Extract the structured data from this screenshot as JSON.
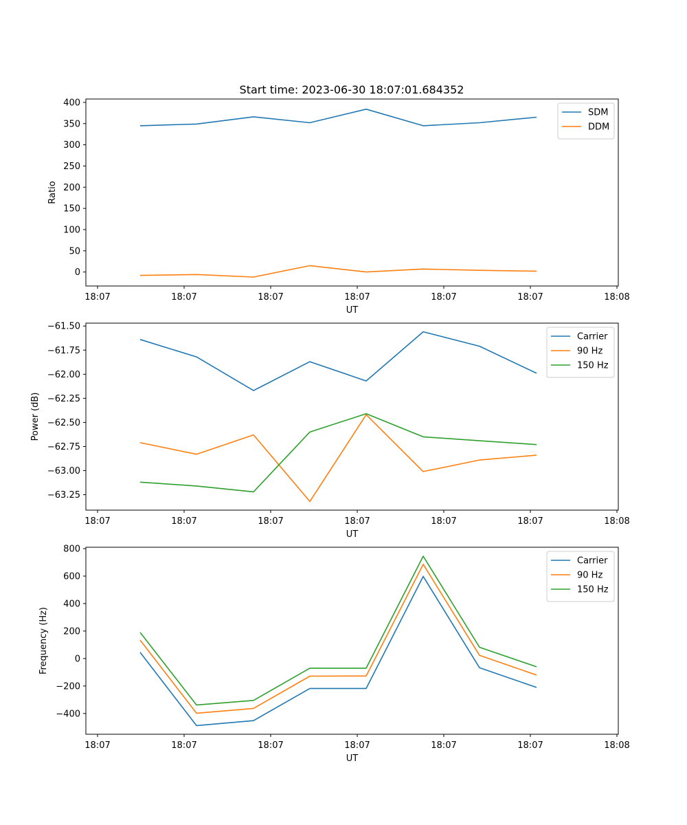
{
  "figure": {
    "title": "Start time: 2023-06-30 18:07:01.684352"
  },
  "chart_data": [
    {
      "type": "line",
      "title": "Start time: 2023-06-30 18:07:01.684352",
      "xlabel": "UT",
      "ylabel": "Ratio",
      "x_ticks": [
        "18:07",
        "18:07",
        "18:07",
        "18:07",
        "18:07",
        "18:07",
        "18:08"
      ],
      "ylim": [
        -33,
        408
      ],
      "y_ticks": [
        0,
        50,
        100,
        150,
        200,
        250,
        300,
        350,
        400
      ],
      "legend": "top-right",
      "grid": false,
      "x": [
        1,
        2,
        3,
        4,
        5,
        6,
        7,
        8
      ],
      "series": [
        {
          "name": "SDM",
          "color": "#1f77b4",
          "values": [
            345,
            349,
            366,
            352,
            384,
            345,
            352,
            365
          ]
        },
        {
          "name": "DDM",
          "color": "#ff7f0e",
          "values": [
            -8,
            -6,
            -12,
            15,
            0,
            7,
            4,
            2
          ]
        }
      ]
    },
    {
      "type": "line",
      "title": "",
      "xlabel": "UT",
      "ylabel": "Power (dB)",
      "x_ticks": [
        "18:07",
        "18:07",
        "18:07",
        "18:07",
        "18:07",
        "18:07",
        "18:08"
      ],
      "ylim": [
        -63.41,
        -61.47
      ],
      "y_ticks": [
        "-61.50",
        "-61.75",
        "-62.00",
        "-62.25",
        "-62.50",
        "-62.75",
        "-63.00",
        "-63.25"
      ],
      "legend": "top-right",
      "grid": false,
      "x": [
        1,
        2,
        3,
        4,
        5,
        6,
        7,
        8
      ],
      "series": [
        {
          "name": "Carrier",
          "color": "#1f77b4",
          "values": [
            -61.64,
            -61.82,
            -62.17,
            -61.87,
            -62.07,
            -61.56,
            -61.71,
            -61.99
          ]
        },
        {
          "name": "90 Hz",
          "color": "#ff7f0e",
          "values": [
            -62.71,
            -62.83,
            -62.63,
            -63.32,
            -62.42,
            -63.01,
            -62.89,
            -62.84
          ]
        },
        {
          "name": "150 Hz",
          "color": "#2ca02c",
          "values": [
            -63.12,
            -63.16,
            -63.22,
            -62.6,
            -62.41,
            -62.65,
            -62.69,
            -62.73
          ]
        }
      ]
    },
    {
      "type": "line",
      "title": "",
      "xlabel": "UT",
      "ylabel": "Frequency (Hz)",
      "x_ticks": [
        "18:07",
        "18:07",
        "18:07",
        "18:07",
        "18:07",
        "18:07",
        "18:08"
      ],
      "ylim": [
        -551,
        810
      ],
      "y_ticks": [
        -400,
        -200,
        0,
        200,
        400,
        600,
        800
      ],
      "legend": "top-right",
      "grid": false,
      "x": [
        1,
        2,
        3,
        4,
        5,
        6,
        7,
        8
      ],
      "series": [
        {
          "name": "Carrier",
          "color": "#1f77b4",
          "values": [
            45,
            -488,
            -452,
            -218,
            -218,
            598,
            -67,
            -210
          ]
        },
        {
          "name": "90 Hz",
          "color": "#ff7f0e",
          "values": [
            134,
            -398,
            -363,
            -128,
            -127,
            686,
            23,
            -120
          ]
        },
        {
          "name": "150 Hz",
          "color": "#2ca02c",
          "values": [
            190,
            -338,
            -305,
            -70,
            -70,
            745,
            82,
            -60
          ]
        }
      ]
    }
  ]
}
